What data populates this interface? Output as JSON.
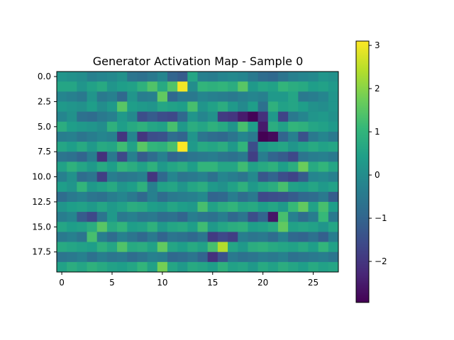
{
  "chart_data": {
    "type": "heatmap",
    "title": "Generator Activation Map - Sample 0",
    "xlabel": "",
    "ylabel": "",
    "colormap": "viridis",
    "rows": 20,
    "cols": 28,
    "x_ticks": [
      0,
      5,
      10,
      15,
      20,
      25
    ],
    "x_tick_labels": [
      "0",
      "5",
      "10",
      "15",
      "20",
      "25"
    ],
    "y_ticks": [
      0,
      2.5,
      5,
      7.5,
      10,
      12.5,
      15,
      17.5
    ],
    "y_tick_labels": [
      "0.0",
      "2.5",
      "5.0",
      "7.5",
      "10.0",
      "12.5",
      "15.0",
      "17.5"
    ],
    "colorbar": {
      "vmin": -2.95,
      "vmax": 3.1,
      "ticks": [
        -2,
        -1,
        0,
        1,
        2,
        3
      ],
      "tick_labels": [
        "−2",
        "−1",
        "0",
        "1",
        "2",
        "3"
      ]
    },
    "values": [
      [
        0.2,
        0.1,
        0.0,
        -0.3,
        -0.2,
        -0.1,
        0.1,
        -0.6,
        -0.7,
        -0.5,
        -0.2,
        -1.0,
        -1.2,
        0.6,
        -0.3,
        -0.4,
        -0.2,
        -0.1,
        -0.2,
        -0.5,
        -0.8,
        -0.9,
        -0.6,
        -0.3,
        -0.2,
        -0.1,
        0.2,
        0.1
      ],
      [
        0.6,
        0.6,
        0.2,
        0.5,
        0.7,
        0.2,
        0.4,
        0.5,
        0.9,
        1.4,
        0.7,
        1.4,
        3.0,
        0.0,
        1.0,
        0.9,
        1.0,
        0.8,
        1.5,
        0.3,
        0.6,
        0.5,
        1.0,
        0.8,
        0.7,
        0.4,
        0.5,
        0.3
      ],
      [
        -0.2,
        -0.3,
        -0.5,
        0.2,
        -0.5,
        -0.3,
        -0.9,
        0.2,
        -0.4,
        -0.3,
        1.6,
        -0.9,
        -0.5,
        -0.5,
        -0.2,
        -0.3,
        -0.4,
        -0.5,
        -0.3,
        -0.2,
        -0.3,
        0.3,
        0.3,
        0.6,
        -0.5,
        -0.4,
        -0.2,
        0.2
      ],
      [
        0.3,
        0.2,
        0.1,
        0.4,
        0.0,
        0.3,
        1.5,
        0.4,
        0.3,
        0.2,
        0.6,
        0.5,
        0.4,
        1.3,
        0.2,
        0.5,
        0.8,
        0.3,
        -0.1,
        0.4,
        -0.7,
        0.9,
        0.5,
        0.6,
        0.4,
        0.1,
        0.0,
        0.2
      ],
      [
        -0.2,
        0.1,
        -0.7,
        -0.8,
        -0.5,
        -0.3,
        0.3,
        -0.1,
        -1.5,
        -1.2,
        -1.5,
        -1.6,
        -0.9,
        0.2,
        -0.2,
        0.1,
        -1.9,
        -2.0,
        -2.5,
        -2.9,
        -2.1,
        0.3,
        -1.7,
        -0.5,
        -0.2,
        0.2,
        0.3,
        0.1
      ],
      [
        0.8,
        0.4,
        0.3,
        0.2,
        0.0,
        0.9,
        0.4,
        0.7,
        0.9,
        0.6,
        0.5,
        1.3,
        0.3,
        0.8,
        0.6,
        0.9,
        0.7,
        0.2,
        1.3,
        0.4,
        -2.5,
        0.8,
        0.5,
        1.0,
        0.9,
        0.6,
        0.5,
        0.3
      ],
      [
        -0.4,
        -0.3,
        -0.6,
        -0.4,
        -0.2,
        -0.3,
        -2.0,
        -0.2,
        -2.0,
        -1.5,
        -1.4,
        -0.8,
        -1.0,
        0.2,
        -0.6,
        -0.8,
        -0.9,
        -0.6,
        -0.2,
        -0.5,
        -3.0,
        -2.8,
        -1.0,
        -0.3,
        -1.4,
        -0.5,
        -0.2,
        -0.5
      ],
      [
        0.6,
        0.4,
        0.7,
        0.3,
        0.7,
        0.6,
        1.2,
        0.5,
        1.5,
        1.0,
        0.9,
        1.3,
        3.1,
        0.3,
        0.7,
        0.6,
        0.8,
        0.3,
        1.0,
        -1.5,
        0.3,
        0.5,
        0.6,
        0.2,
        0.5,
        0.7,
        0.5,
        0.6
      ],
      [
        -0.6,
        -0.7,
        -1.0,
        -0.4,
        -2.1,
        -0.5,
        -1.6,
        -0.3,
        -1.2,
        -0.8,
        -0.3,
        -1.0,
        -0.8,
        -0.6,
        -0.5,
        -0.4,
        -0.6,
        -0.7,
        -0.5,
        -1.8,
        -0.4,
        -1.0,
        -1.2,
        -1.6,
        -0.6,
        -0.4,
        -0.3,
        -0.5
      ],
      [
        0.5,
        0.9,
        0.6,
        0.3,
        0.7,
        0.4,
        1.0,
        0.8,
        0.5,
        0.9,
        0.3,
        0.6,
        0.8,
        0.4,
        1.0,
        1.0,
        0.6,
        0.6,
        1.2,
        0.5,
        0.7,
        0.9,
        0.4,
        0.8,
        1.7,
        0.7,
        1.0,
        0.6
      ],
      [
        -0.3,
        0.1,
        -0.8,
        -0.6,
        -1.8,
        -0.4,
        -0.6,
        -0.5,
        -0.3,
        -2.0,
        -0.9,
        -0.2,
        -0.6,
        -0.5,
        -0.3,
        -0.7,
        -0.2,
        -0.4,
        -0.6,
        -0.1,
        -1.3,
        -1.0,
        -1.5,
        -1.7,
        -1.2,
        -0.2,
        -0.1,
        -0.3
      ],
      [
        0.4,
        0.2,
        1.0,
        0.3,
        0.5,
        0.7,
        0.2,
        0.4,
        0.9,
        -0.3,
        0.5,
        0.6,
        0.2,
        0.6,
        0.8,
        0.3,
        0.1,
        0.5,
        0.9,
        0.3,
        0.6,
        0.8,
        1.3,
        0.5,
        0.4,
        0.6,
        0.3,
        0.5
      ],
      [
        -0.8,
        -0.5,
        -0.3,
        -0.6,
        -0.7,
        -0.4,
        -0.2,
        -0.5,
        -0.9,
        -0.3,
        -0.8,
        -0.5,
        -0.4,
        -0.3,
        -0.1,
        -1.0,
        -0.9,
        -0.4,
        -0.8,
        -0.5,
        -1.6,
        -1.5,
        -1.4,
        -1.2,
        -0.9,
        -0.8,
        -0.5,
        -1.2
      ],
      [
        0.2,
        0.4,
        0.5,
        0.3,
        0.6,
        0.3,
        0.5,
        0.8,
        0.7,
        0.4,
        0.3,
        0.6,
        0.4,
        0.3,
        1.3,
        0.5,
        0.8,
        1.0,
        0.6,
        0.7,
        0.4,
        0.6,
        0.3,
        1.1,
        1.6,
        0.5,
        1.3,
        0.4
      ],
      [
        -0.4,
        -0.2,
        -1.2,
        -1.6,
        -0.6,
        0.3,
        -0.5,
        -0.3,
        -0.6,
        -0.5,
        -0.8,
        -0.7,
        -1.0,
        -0.4,
        -0.6,
        -0.7,
        -0.4,
        -0.9,
        -0.6,
        -1.5,
        -1.0,
        -2.6,
        1.3,
        -0.3,
        -0.8,
        -0.4,
        1.1,
        -0.5
      ],
      [
        0.6,
        0.4,
        0.5,
        0.8,
        1.5,
        0.7,
        1.0,
        0.4,
        0.5,
        0.9,
        0.3,
        0.6,
        0.7,
        0.4,
        1.2,
        0.3,
        0.6,
        0.8,
        0.9,
        0.4,
        0.5,
        0.7,
        1.6,
        0.5,
        0.6,
        0.5,
        0.2,
        0.6
      ],
      [
        -0.5,
        -0.3,
        -0.6,
        1.3,
        -0.4,
        -0.8,
        -0.3,
        -0.6,
        -0.9,
        -0.5,
        -1.0,
        -0.6,
        -0.7,
        -0.9,
        -0.6,
        -1.9,
        -1.6,
        -1.8,
        -0.4,
        -0.6,
        -0.5,
        -0.8,
        -0.3,
        -0.9,
        -1.0,
        -0.7,
        -1.1,
        -0.4
      ],
      [
        0.7,
        0.6,
        0.5,
        0.4,
        0.9,
        0.6,
        1.4,
        0.7,
        0.8,
        0.5,
        1.6,
        0.6,
        0.4,
        0.7,
        0.5,
        1.3,
        2.4,
        0.6,
        0.3,
        0.8,
        0.9,
        0.7,
        0.6,
        0.5,
        0.7,
        0.4,
        1.0,
        0.5
      ],
      [
        -0.6,
        -0.5,
        -0.3,
        -0.7,
        -0.4,
        -0.6,
        -0.5,
        -0.8,
        -0.6,
        -0.3,
        -0.4,
        -0.9,
        -0.8,
        -0.6,
        -1.0,
        -2.1,
        -1.4,
        -0.5,
        -0.7,
        -0.6,
        -0.4,
        -0.5,
        -0.3,
        -0.7,
        -0.6,
        -0.5,
        -0.4,
        -0.6
      ],
      [
        0.5,
        0.8,
        0.6,
        0.9,
        0.7,
        0.5,
        0.4,
        0.6,
        1.0,
        0.5,
        1.8,
        0.6,
        0.3,
        0.7,
        0.6,
        0.4,
        0.9,
        0.5,
        0.6,
        0.3,
        0.7,
        0.5,
        0.8,
        0.6,
        0.4,
        0.7,
        0.5,
        0.6
      ]
    ]
  }
}
